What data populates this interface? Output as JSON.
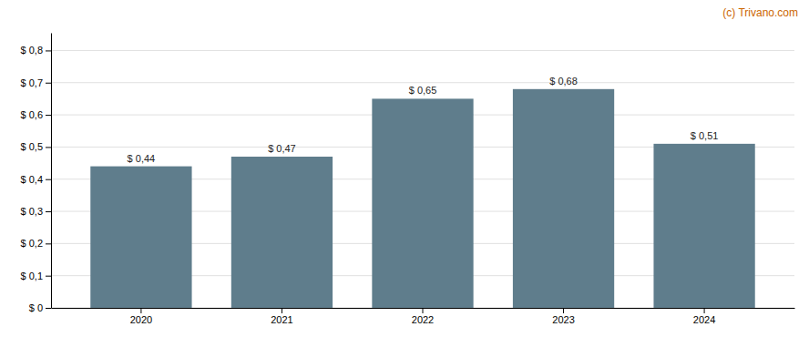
{
  "chart_data": {
    "type": "bar",
    "categories": [
      "2020",
      "2021",
      "2022",
      "2023",
      "2024"
    ],
    "values": [
      0.44,
      0.47,
      0.65,
      0.68,
      0.51
    ],
    "value_labels": [
      "$ 0,44",
      "$ 0,47",
      "$ 0,65",
      "$ 0,68",
      "$ 0,51"
    ],
    "data_labels": true,
    "color": "#5f7d8c",
    "ylim": [
      0,
      0.855
    ],
    "yticks": [
      {
        "value": 0,
        "label": "$ 0"
      },
      {
        "value": 0.1,
        "label": "$ 0,1"
      },
      {
        "value": 0.2,
        "label": "$ 0,2"
      },
      {
        "value": 0.3,
        "label": "$ 0,3"
      },
      {
        "value": 0.4,
        "label": "$ 0,4"
      },
      {
        "value": 0.5,
        "label": "$ 0,5"
      },
      {
        "value": 0.6,
        "label": "$ 0,6"
      },
      {
        "value": 0.7,
        "label": "$ 0,7"
      },
      {
        "value": 0.8,
        "label": "$ 0,8"
      }
    ],
    "grid": true,
    "annotations": [
      "(c) Trivano.com"
    ]
  }
}
